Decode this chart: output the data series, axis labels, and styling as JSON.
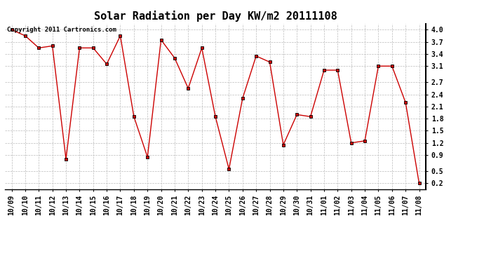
{
  "title": "Solar Radiation per Day KW/m2 20111108",
  "copyright_text": "Copyright 2011 Cartronics.com",
  "labels": [
    "10/09",
    "10/10",
    "10/11",
    "10/12",
    "10/13",
    "10/14",
    "10/15",
    "10/16",
    "10/17",
    "10/18",
    "10/19",
    "10/20",
    "10/21",
    "10/22",
    "10/23",
    "10/24",
    "10/25",
    "10/26",
    "10/27",
    "10/28",
    "10/29",
    "10/30",
    "10/31",
    "11/01",
    "11/02",
    "11/03",
    "11/04",
    "11/05",
    "11/06",
    "11/07",
    "11/08"
  ],
  "values": [
    4.0,
    3.85,
    3.55,
    3.6,
    0.8,
    3.55,
    3.55,
    3.15,
    3.85,
    1.85,
    0.85,
    3.75,
    3.3,
    2.55,
    3.55,
    1.85,
    0.55,
    2.3,
    3.35,
    3.2,
    1.15,
    1.9,
    1.85,
    3.0,
    3.0,
    1.2,
    1.25,
    3.1,
    3.1,
    2.2,
    0.2
  ],
  "line_color": "#cc0000",
  "marker_color": "#000000",
  "bg_color": "#ffffff",
  "grid_color": "#bbbbbb",
  "ylim_min": 0.05,
  "ylim_max": 4.15,
  "yticks": [
    0.2,
    0.5,
    0.9,
    1.2,
    1.5,
    1.8,
    2.1,
    2.4,
    2.7,
    3.1,
    3.4,
    3.7,
    4.0
  ],
  "title_fontsize": 11,
  "tick_fontsize": 7,
  "copyright_fontsize": 6.5
}
